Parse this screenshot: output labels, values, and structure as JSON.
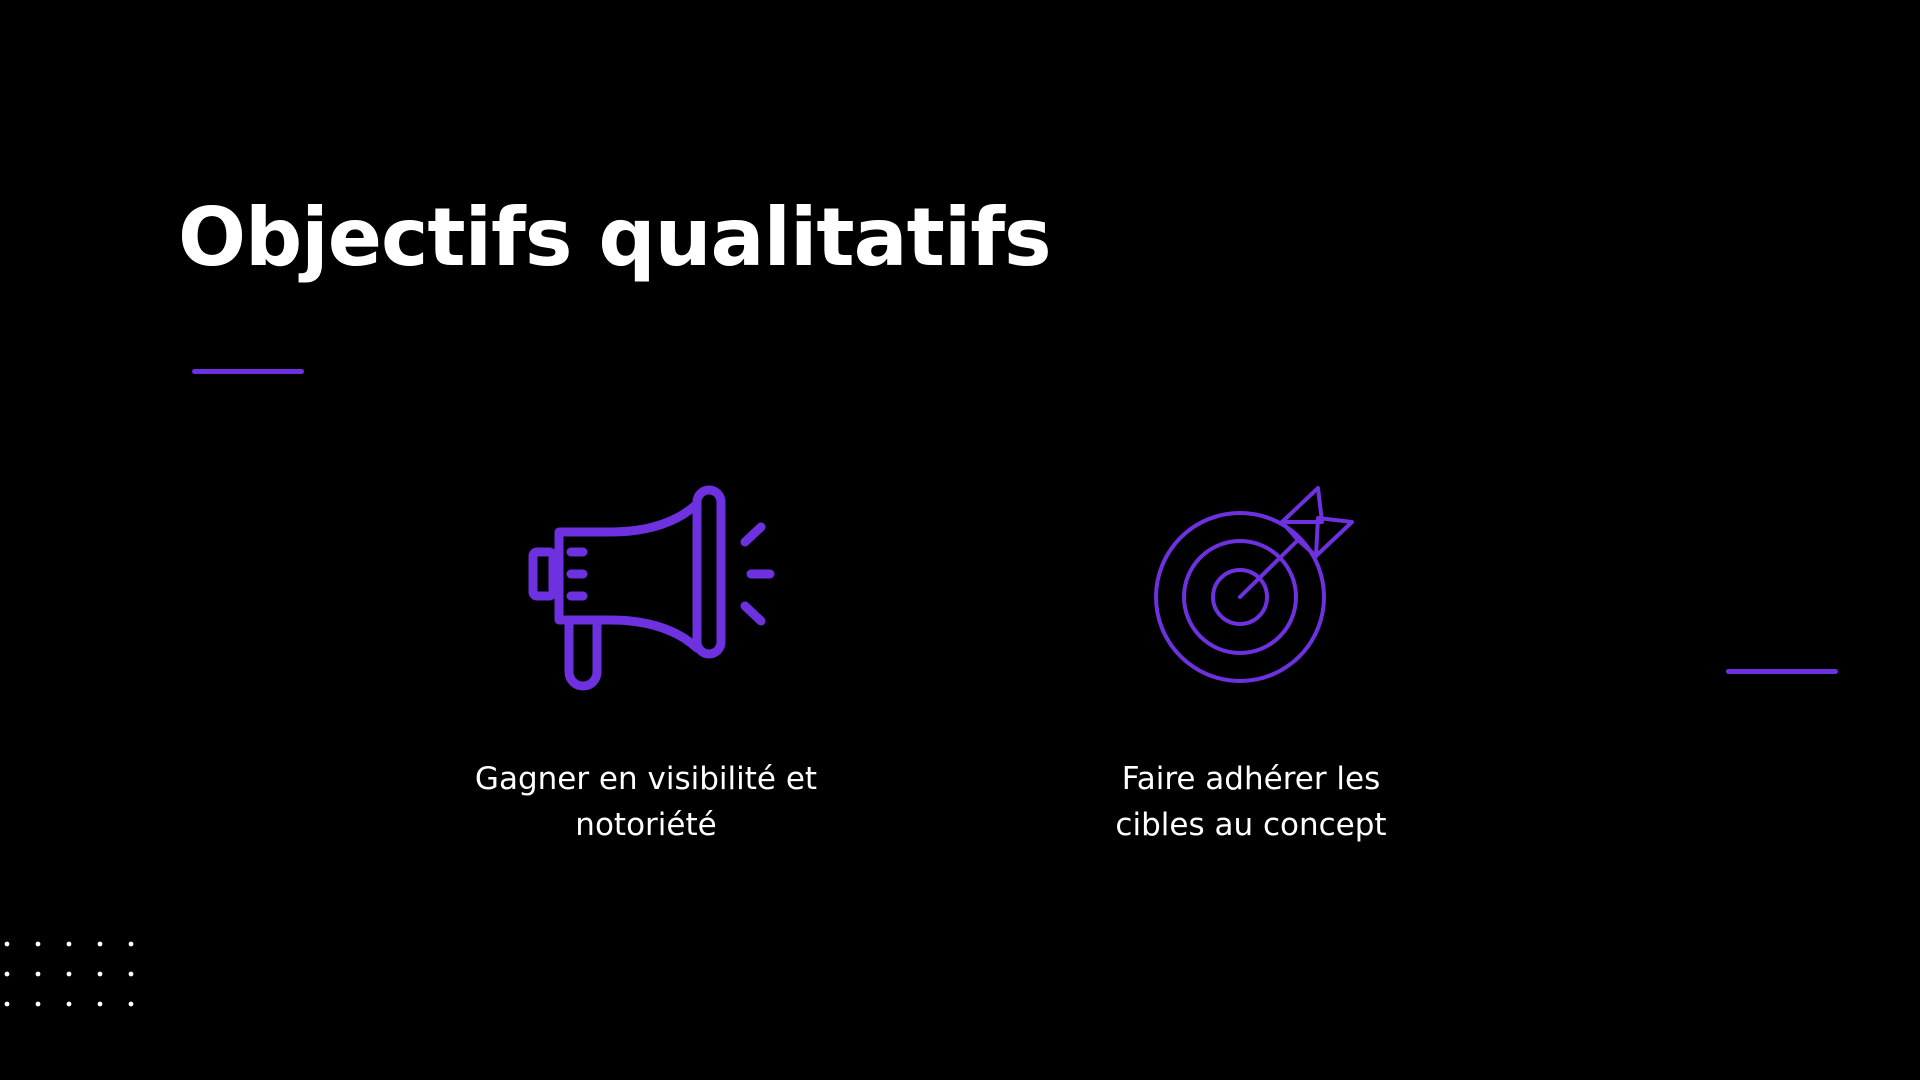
{
  "slide": {
    "title": "Objectifs qualitatifs",
    "background_color": "#000000",
    "accent_color": "#6e31e0"
  },
  "objectives": [
    {
      "icon": "megaphone-icon",
      "line1": "Gagner en visibilité et",
      "line2": "notoriété"
    },
    {
      "icon": "target-icon",
      "line1": "Faire adhérer les",
      "line2": "cibles au concept"
    }
  ],
  "decorations": {
    "dot_grid_color": "#ffffff"
  }
}
